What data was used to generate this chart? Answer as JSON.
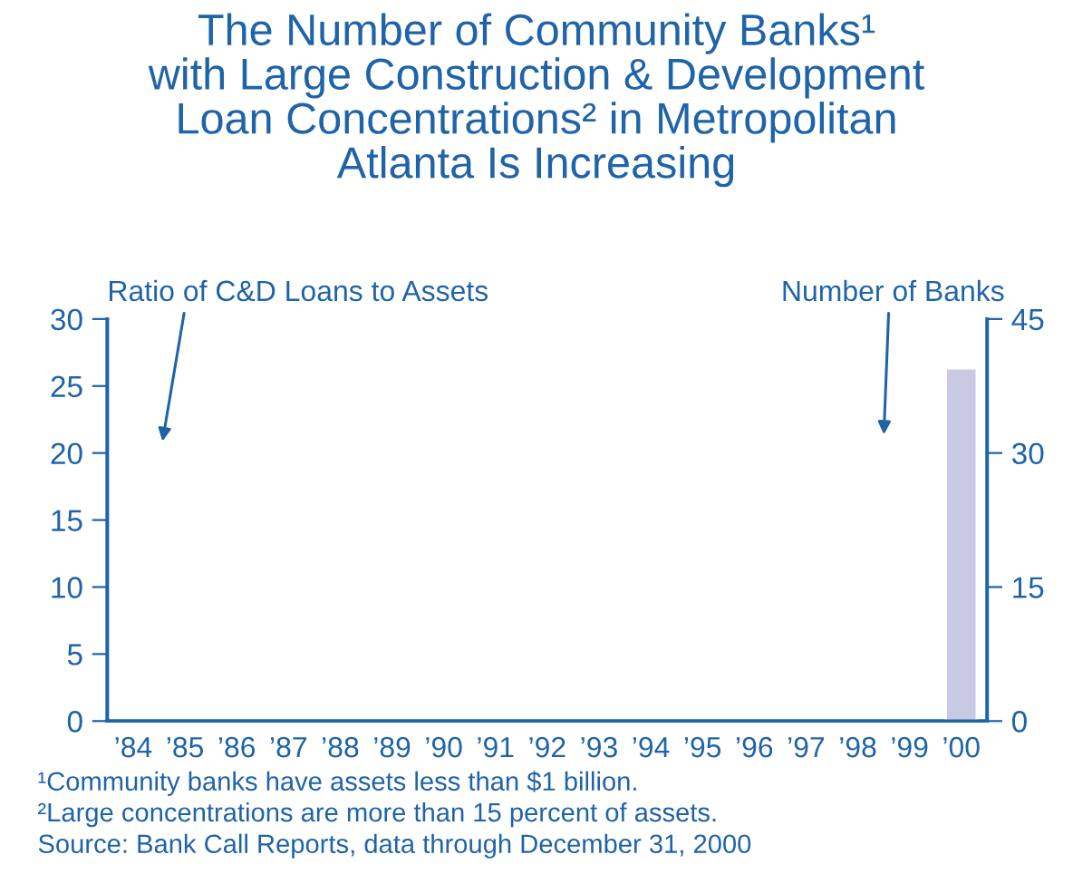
{
  "chart_data": {
    "type": "bar",
    "title": "The Number of Community Banks¹\nwith Large Construction & Development\nLoan Concentrations² in Metropolitan\nAtlanta Is Increasing",
    "ylabel": "Ratio of C&D Loans to Assets",
    "y2label": "Number of Banks",
    "categories": [
      "’84",
      "’85",
      "’86",
      "’87",
      "’88",
      "’89",
      "’90",
      "’91",
      "’92",
      "’93",
      "’94",
      "’95",
      "’96",
      "’97",
      "’98",
      "’99",
      "’00"
    ],
    "series": [
      {
        "color": "#c8cae4",
        "axis": "y2",
        "values": [
          null,
          null,
          null,
          null,
          null,
          null,
          null,
          null,
          null,
          null,
          null,
          null,
          null,
          null,
          null,
          null,
          39.5
        ]
      }
    ],
    "ylim": [
      0,
      30
    ],
    "yticks": [
      0,
      5,
      10,
      15,
      20,
      25,
      30
    ],
    "y2lim": [
      0,
      45
    ],
    "y2ticks": [
      0,
      15,
      30,
      45
    ],
    "grid": false,
    "legend": false,
    "annotations": [
      "¹Community banks have assets less than $1 billion.",
      "²Large concentrations are more than 15 percent of assets.",
      "Source: Bank Call Reports, data through December 31, 2000"
    ]
  }
}
